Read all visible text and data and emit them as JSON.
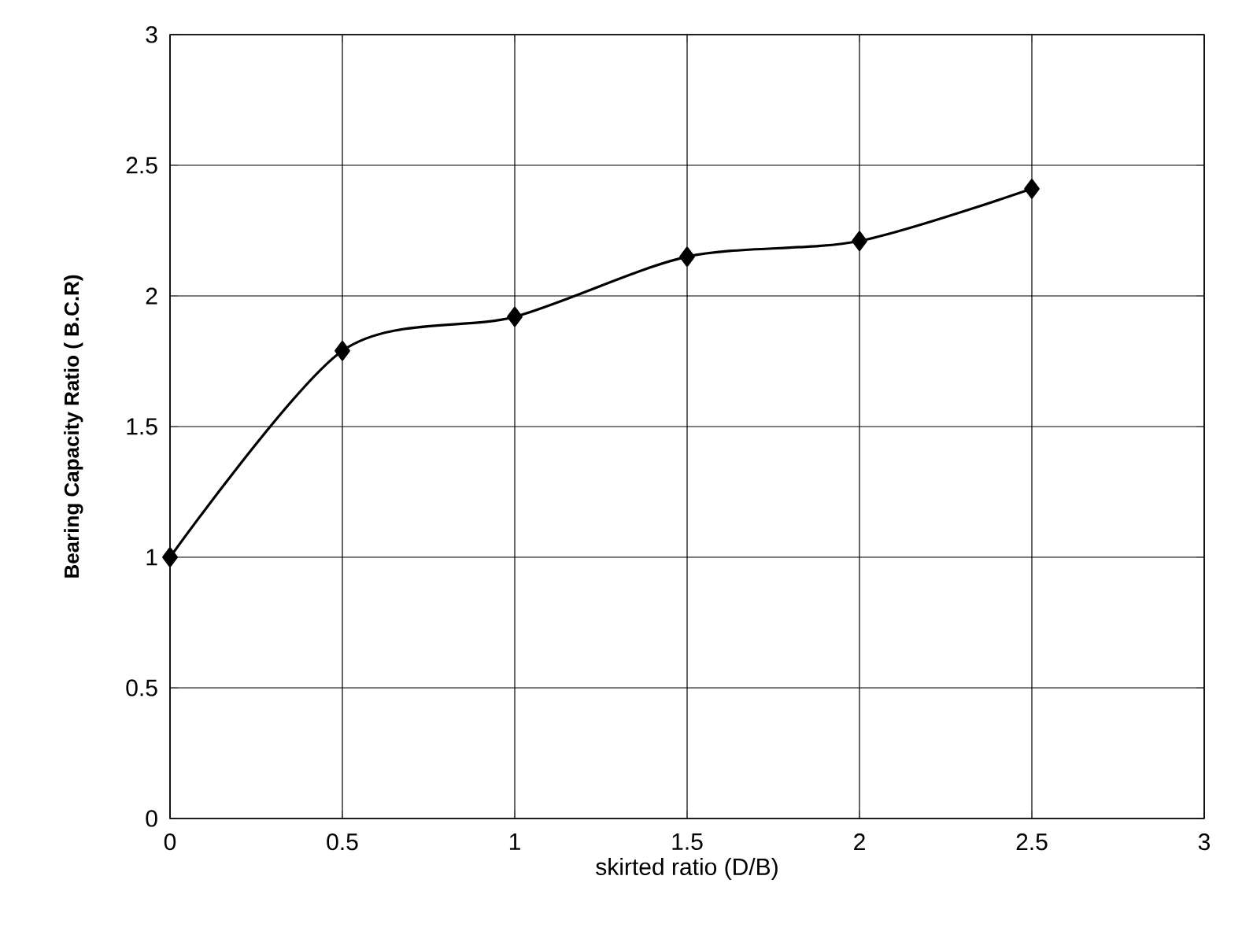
{
  "chart_data": {
    "type": "line",
    "xlabel": "skirted ratio (D/B)",
    "ylabel": "Bearing Capacity Ratio ( B.C.R)",
    "x": [
      0,
      0.5,
      1,
      1.5,
      2,
      2.5
    ],
    "series": [
      {
        "color": "#000000",
        "values": [
          1,
          1.79,
          1.92,
          2.15,
          2.21,
          2.41
        ]
      }
    ],
    "xlim": [
      0,
      3
    ],
    "ylim": [
      0,
      3
    ],
    "xticks": [
      0,
      0.5,
      1,
      1.5,
      2,
      2.5,
      3
    ],
    "yticks": [
      0,
      0.5,
      1,
      1.5,
      2,
      2.5,
      3
    ],
    "grid": true,
    "marker": "diamond",
    "line_style": "solid"
  }
}
